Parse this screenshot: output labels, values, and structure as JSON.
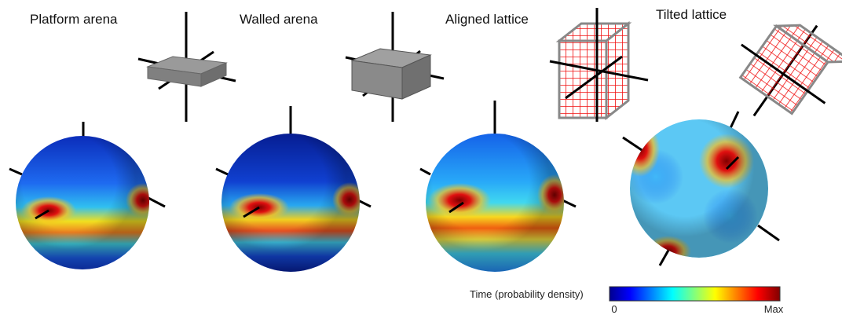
{
  "panels": [
    {
      "title": "Platform arena"
    },
    {
      "title": "Walled arena"
    },
    {
      "title": "Aligned lattice"
    },
    {
      "title": "Tilted lattice"
    }
  ],
  "colorbar": {
    "label": "Time (probability density)",
    "min_label": "0",
    "max_label": "Max"
  }
}
